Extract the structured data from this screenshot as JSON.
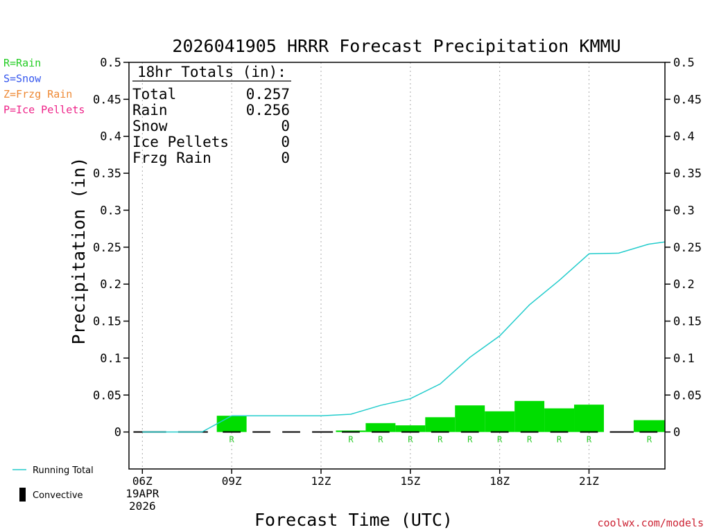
{
  "chart_data": {
    "type": "bar",
    "title": "2026041905 HRRR Forecast Precipitation KMMU",
    "xlabel": "Forecast Time (UTC)",
    "ylabel": "Precipitation (in)",
    "ylim": [
      -0.05,
      0.5
    ],
    "y_ticks": [
      "0",
      "0.05",
      "0.1",
      "0.15",
      "0.2",
      "0.25",
      "0.3",
      "0.35",
      "0.4",
      "0.45",
      "0.5"
    ],
    "x_range_hours": [
      5.55,
      23.55
    ],
    "x_ticks": [
      {
        "hour": 6,
        "label": "06Z",
        "sub": [
          "19APR",
          "2026"
        ]
      },
      {
        "hour": 9,
        "label": "09Z",
        "sub": []
      },
      {
        "hour": 12,
        "label": "12Z",
        "sub": []
      },
      {
        "hour": 15,
        "label": "15Z",
        "sub": []
      },
      {
        "hour": 18,
        "label": "18Z",
        "sub": []
      },
      {
        "hour": 21,
        "label": "21Z",
        "sub": []
      }
    ],
    "legend_types": [
      {
        "text": "R=Rain",
        "color": "#22cc22"
      },
      {
        "text": "S=Snow",
        "color": "#3355ee"
      },
      {
        "text": "Z=Frzg Rain",
        "color": "#ee8833"
      },
      {
        "text": "P=Ice Pellets",
        "color": "#ee2288"
      }
    ],
    "legend_lines": [
      {
        "text": "Running Total",
        "kind": "line",
        "color": "#22cccc"
      },
      {
        "text": "Convective",
        "kind": "bar",
        "color": "#000000"
      }
    ],
    "totals": {
      "heading": "18hr Totals (in):",
      "rows": [
        {
          "label": "Total",
          "value": "0.257"
        },
        {
          "label": "Rain",
          "value": "0.256"
        },
        {
          "label": "Snow",
          "value": "0"
        },
        {
          "label": "Ice Pellets",
          "value": "0"
        },
        {
          "label": "Frzg Rain",
          "value": "0"
        }
      ]
    },
    "bar_color": "#00dd00",
    "line_color": "#22cccc",
    "hourly_bars": [
      {
        "start": 8.5,
        "end": 9.5,
        "value": 0.022,
        "type": "R"
      },
      {
        "start": 12.5,
        "end": 13.5,
        "value": 0.002,
        "type": "R"
      },
      {
        "start": 13.5,
        "end": 14.5,
        "value": 0.012,
        "type": "R"
      },
      {
        "start": 14.5,
        "end": 15.5,
        "value": 0.009,
        "type": "R"
      },
      {
        "start": 15.5,
        "end": 16.5,
        "value": 0.02,
        "type": "R"
      },
      {
        "start": 16.5,
        "end": 17.5,
        "value": 0.036,
        "type": "R"
      },
      {
        "start": 17.5,
        "end": 18.5,
        "value": 0.028,
        "type": "R"
      },
      {
        "start": 18.5,
        "end": 19.5,
        "value": 0.042,
        "type": "R"
      },
      {
        "start": 19.5,
        "end": 20.5,
        "value": 0.032,
        "type": "R"
      },
      {
        "start": 20.5,
        "end": 21.5,
        "value": 0.037,
        "type": "R"
      },
      {
        "start": 22.5,
        "end": 23.55,
        "value": 0.016,
        "type": "R"
      }
    ],
    "running_total": {
      "x": [
        6,
        7,
        8,
        9,
        10,
        11,
        12,
        13,
        14,
        15,
        16,
        17,
        18,
        19,
        20,
        21,
        22,
        23,
        23.55
      ],
      "y": [
        0,
        0,
        0,
        0.022,
        0.022,
        0.022,
        0.022,
        0.024,
        0.036,
        0.045,
        0.065,
        0.101,
        0.13,
        0.172,
        0.205,
        0.241,
        0.242,
        0.254,
        0.257
      ]
    },
    "convective_segments": [
      [
        5.7,
        6.8
      ],
      [
        7.2,
        8.2
      ],
      [
        8.7,
        9.3
      ],
      [
        9.7,
        10.3
      ],
      [
        10.7,
        11.3
      ],
      [
        11.7,
        12.4
      ],
      [
        12.7,
        13.3
      ],
      [
        13.7,
        14.3
      ],
      [
        14.7,
        15.3
      ],
      [
        15.7,
        16.3
      ],
      [
        16.7,
        17.3
      ],
      [
        17.7,
        18.3
      ],
      [
        18.7,
        19.3
      ],
      [
        19.7,
        20.3
      ],
      [
        20.7,
        21.3
      ],
      [
        21.7,
        22.5
      ],
      [
        22.7,
        23.3
      ]
    ],
    "credit": "coolwx.com/models"
  }
}
